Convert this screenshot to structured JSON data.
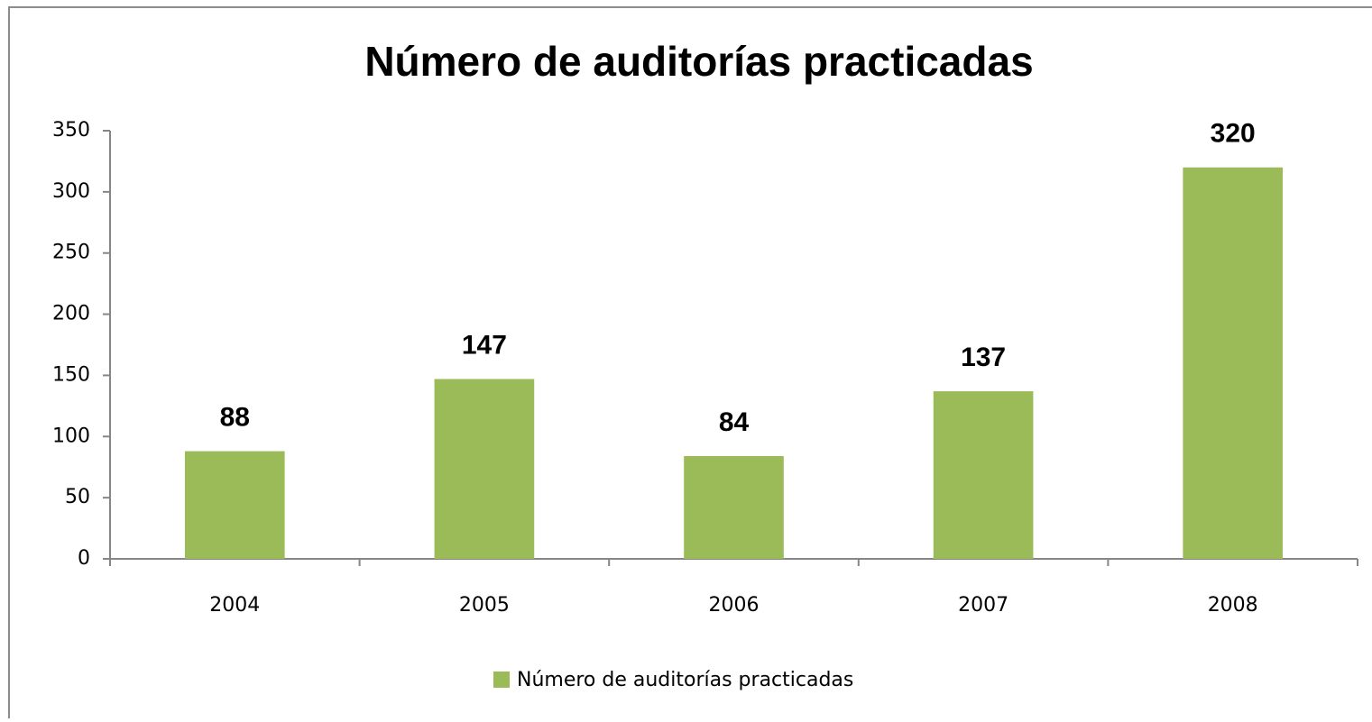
{
  "chart_data": {
    "type": "bar",
    "title": "Número de auditorías practicadas",
    "categories": [
      "2004",
      "2005",
      "2006",
      "2007",
      "2008"
    ],
    "series": [
      {
        "name": "Número de auditorías  practicadas",
        "color": "#9bbb59",
        "values": [
          88,
          147,
          84,
          137,
          320
        ]
      }
    ],
    "label_color": "#77933c",
    "ylim": [
      0,
      350
    ],
    "yticks": [
      0,
      50,
      100,
      150,
      200,
      250,
      300,
      350
    ],
    "grid": false,
    "legend": "bottom"
  }
}
